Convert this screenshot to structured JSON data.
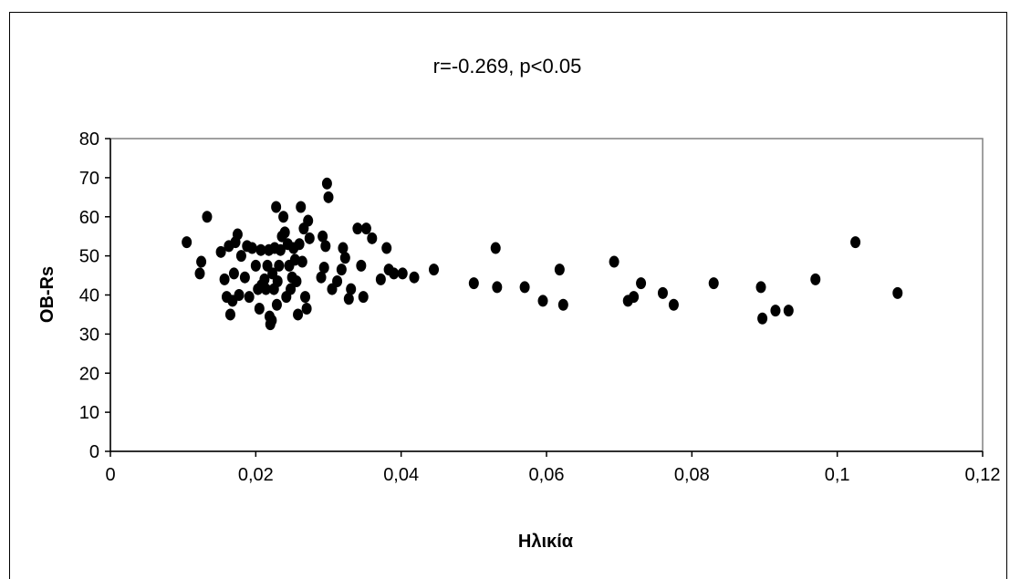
{
  "chart_data": {
    "type": "scatter",
    "title": "r=-0.269, p<0.05",
    "xlabel": "Ηλικία",
    "ylabel": "OB-Rs",
    "xlim": [
      0,
      0.12
    ],
    "ylim": [
      0,
      80
    ],
    "x_ticks": [
      0,
      0.02,
      0.04,
      0.06,
      0.08,
      0.1,
      0.12
    ],
    "x_tick_labels": [
      "0",
      "0,02",
      "0,04",
      "0,06",
      "0,08",
      "0,1",
      "0,12"
    ],
    "y_ticks": [
      0,
      10,
      20,
      30,
      40,
      50,
      60,
      70,
      80
    ],
    "y_tick_labels": [
      "0",
      "10",
      "20",
      "30",
      "40",
      "50",
      "60",
      "70",
      "80"
    ],
    "grid": false,
    "legend": "none",
    "marker_color": "#000000",
    "points": [
      [
        0.0105,
        53.5
      ],
      [
        0.0123,
        45.5
      ],
      [
        0.0125,
        48.5
      ],
      [
        0.0133,
        60
      ],
      [
        0.0152,
        51
      ],
      [
        0.0157,
        44
      ],
      [
        0.016,
        39.5
      ],
      [
        0.0163,
        52.5
      ],
      [
        0.0165,
        35
      ],
      [
        0.0168,
        38.5
      ],
      [
        0.017,
        45.5
      ],
      [
        0.0172,
        53.5
      ],
      [
        0.0175,
        55.5
      ],
      [
        0.0177,
        40
      ],
      [
        0.018,
        50
      ],
      [
        0.0185,
        44.5
      ],
      [
        0.0188,
        52.5
      ],
      [
        0.0191,
        39.5
      ],
      [
        0.0195,
        52
      ],
      [
        0.02,
        47.5
      ],
      [
        0.0203,
        41.5
      ],
      [
        0.0205,
        36.5
      ],
      [
        0.0207,
        51.5
      ],
      [
        0.0208,
        42.5
      ],
      [
        0.0212,
        44
      ],
      [
        0.0214,
        41.5
      ],
      [
        0.0216,
        47.5
      ],
      [
        0.0218,
        51.5
      ],
      [
        0.0219,
        34.5
      ],
      [
        0.022,
        32.5
      ],
      [
        0.0222,
        33.5
      ],
      [
        0.0223,
        45.5
      ],
      [
        0.0225,
        41.5
      ],
      [
        0.0226,
        52
      ],
      [
        0.0228,
        62.5
      ],
      [
        0.0229,
        37.5
      ],
      [
        0.023,
        43.5
      ],
      [
        0.0232,
        47.5
      ],
      [
        0.0234,
        51.5
      ],
      [
        0.0236,
        55
      ],
      [
        0.0238,
        60
      ],
      [
        0.024,
        56
      ],
      [
        0.0242,
        39.5
      ],
      [
        0.0244,
        53
      ],
      [
        0.0246,
        47.5
      ],
      [
        0.0248,
        41.5
      ],
      [
        0.025,
        44.5
      ],
      [
        0.0252,
        52
      ],
      [
        0.0254,
        49
      ],
      [
        0.0256,
        43.5
      ],
      [
        0.0258,
        35
      ],
      [
        0.026,
        53
      ],
      [
        0.0262,
        62.5
      ],
      [
        0.0264,
        48.5
      ],
      [
        0.0266,
        57
      ],
      [
        0.0268,
        39.5
      ],
      [
        0.027,
        36.5
      ],
      [
        0.0272,
        59
      ],
      [
        0.0274,
        54.5
      ],
      [
        0.029,
        44.5
      ],
      [
        0.0292,
        55
      ],
      [
        0.0294,
        47
      ],
      [
        0.0296,
        52.5
      ],
      [
        0.0298,
        68.5
      ],
      [
        0.03,
        65
      ],
      [
        0.0305,
        41.5
      ],
      [
        0.0312,
        43.5
      ],
      [
        0.0318,
        46.5
      ],
      [
        0.032,
        52
      ],
      [
        0.0323,
        49.5
      ],
      [
        0.0328,
        39
      ],
      [
        0.0331,
        41.5
      ],
      [
        0.034,
        57
      ],
      [
        0.0345,
        47.5
      ],
      [
        0.0348,
        39.5
      ],
      [
        0.0352,
        57
      ],
      [
        0.036,
        54.5
      ],
      [
        0.0372,
        44
      ],
      [
        0.038,
        52
      ],
      [
        0.0383,
        46.5
      ],
      [
        0.039,
        45.5
      ],
      [
        0.0402,
        45.5
      ],
      [
        0.0418,
        44.5
      ],
      [
        0.0445,
        46.5
      ],
      [
        0.05,
        43
      ],
      [
        0.053,
        52
      ],
      [
        0.0532,
        42
      ],
      [
        0.057,
        42
      ],
      [
        0.0595,
        38.5
      ],
      [
        0.0618,
        46.5
      ],
      [
        0.0623,
        37.5
      ],
      [
        0.0693,
        48.5
      ],
      [
        0.0712,
        38.5
      ],
      [
        0.072,
        39.5
      ],
      [
        0.073,
        43
      ],
      [
        0.076,
        40.5
      ],
      [
        0.0775,
        37.5
      ],
      [
        0.083,
        43
      ],
      [
        0.0895,
        42
      ],
      [
        0.0897,
        34
      ],
      [
        0.0915,
        36
      ],
      [
        0.0933,
        36
      ],
      [
        0.097,
        44
      ],
      [
        0.1025,
        53.5
      ],
      [
        0.1083,
        40.5
      ]
    ]
  }
}
